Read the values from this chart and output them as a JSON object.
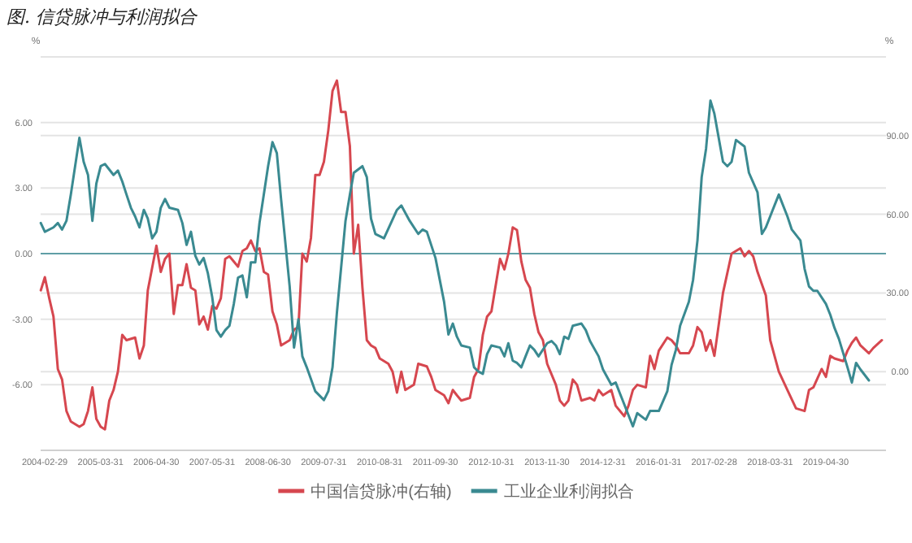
{
  "chart_data": {
    "type": "line",
    "title": "图. 信贷脉冲与利润拟合",
    "ylabel": "%",
    "y2label": "%",
    "xlim": [
      "2004-01-31",
      "2020-06-30"
    ],
    "xticks": [
      "2004-02-29",
      "2005-03-31",
      "2006-04-30",
      "2007-05-31",
      "2008-06-30",
      "2009-07-31",
      "2010-08-31",
      "2011-09-30",
      "2012-10-31",
      "2013-11-30",
      "2014-12-31",
      "2016-01-31",
      "2017-02-28",
      "2018-03-31",
      "2019-04-30"
    ],
    "ylim": [
      -9,
      9
    ],
    "yticks": [
      {
        "value": -9,
        "label": null
      },
      {
        "value": -6,
        "label": "-6.00"
      },
      {
        "value": -3,
        "label": "-3.00"
      },
      {
        "value": 0,
        "label": "0.00"
      },
      {
        "value": 3,
        "label": "3.00"
      },
      {
        "value": 6,
        "label": "6.00"
      },
      {
        "value": 9,
        "label": null
      }
    ],
    "y2lim": [
      -30,
      120
    ],
    "y2ticks": [
      {
        "value": -30,
        "label": null
      },
      {
        "value": 0,
        "label": "0.00"
      },
      {
        "value": 30,
        "label": "30.00"
      },
      {
        "value": 60,
        "label": "60.00"
      },
      {
        "value": 90,
        "label": "90.00"
      },
      {
        "value": 120,
        "label": null
      }
    ],
    "grid": "y",
    "legend": "bottom",
    "ref_lines": [
      {
        "axis": "y",
        "value": 0,
        "color": "#5f9ea6"
      }
    ],
    "series": [
      {
        "name": "中国信贷脉冲(右轴)",
        "color": "#d6474f",
        "axis": "y2",
        "x": [
          "2004-02",
          "2004-03",
          "2004-04",
          "2004-05",
          "2004-06",
          "2004-07",
          "2004-08",
          "2004-09",
          "2004-11",
          "2004-12",
          "2005-01",
          "2005-02",
          "2005-03",
          "2005-04",
          "2005-05",
          "2005-06",
          "2005-07",
          "2005-08",
          "2005-09",
          "2005-10",
          "2005-12",
          "2006-01",
          "2006-02",
          "2006-03",
          "2006-05",
          "2006-06",
          "2006-07",
          "2006-08",
          "2006-09",
          "2006-10",
          "2006-11",
          "2006-12",
          "2007-01",
          "2007-02",
          "2007-03",
          "2007-04",
          "2007-05",
          "2007-06",
          "2007-07",
          "2007-08",
          "2007-09",
          "2007-10",
          "2007-11",
          "2007-12",
          "2008-01",
          "2008-02",
          "2008-03",
          "2008-04",
          "2008-05",
          "2008-06",
          "2008-07",
          "2008-08",
          "2008-09",
          "2008-10",
          "2008-12",
          "2009-01",
          "2009-02",
          "2009-03",
          "2009-04",
          "2009-05",
          "2009-06",
          "2009-07",
          "2009-08",
          "2009-09",
          "2009-10",
          "2009-11",
          "2009-12",
          "2010-01",
          "2010-02",
          "2010-03",
          "2010-04",
          "2010-05",
          "2010-06",
          "2010-07",
          "2010-08",
          "2010-09",
          "2010-11",
          "2010-12",
          "2011-01",
          "2011-02",
          "2011-03",
          "2011-05",
          "2011-06",
          "2011-08",
          "2011-09",
          "2011-10",
          "2011-12",
          "2012-01",
          "2012-02",
          "2012-03",
          "2012-04",
          "2012-06",
          "2012-07",
          "2012-08",
          "2012-09",
          "2012-10",
          "2012-11",
          "2013-01",
          "2013-02",
          "2013-03",
          "2013-04",
          "2013-05",
          "2013-06",
          "2013-07",
          "2013-08",
          "2013-09",
          "2013-10",
          "2013-11",
          "2013-12",
          "2014-02",
          "2014-03",
          "2014-04",
          "2014-05",
          "2014-06",
          "2014-07",
          "2014-08",
          "2014-10",
          "2014-11",
          "2014-12",
          "2015-01",
          "2015-03",
          "2015-04",
          "2015-06",
          "2015-07",
          "2015-08",
          "2015-09",
          "2015-11",
          "2015-12",
          "2016-01",
          "2016-02",
          "2016-04",
          "2016-05",
          "2016-06",
          "2016-07",
          "2016-09",
          "2016-10",
          "2016-11",
          "2016-12",
          "2017-01",
          "2017-02",
          "2017-03",
          "2017-04",
          "2017-05",
          "2017-07",
          "2017-08",
          "2017-09",
          "2017-10",
          "2017-11",
          "2017-12",
          "2018-01",
          "2018-03",
          "2018-04",
          "2018-06",
          "2018-08",
          "2018-10",
          "2018-12",
          "2019-01",
          "2019-02",
          "2019-04",
          "2019-05",
          "2019-06",
          "2019-07",
          "2019-09",
          "2019-10",
          "2019-11",
          "2019-12",
          "2020-01",
          "2020-03",
          "2020-04",
          "2020-06"
        ],
        "values": [
          31,
          36,
          28,
          21,
          1,
          -3,
          -15,
          -19,
          -21,
          -20,
          -15,
          -6,
          -18,
          -21,
          -22,
          -11,
          -7,
          0,
          14,
          12,
          13,
          5,
          10,
          31,
          48,
          38,
          43,
          45,
          22,
          33,
          33,
          41,
          32,
          31,
          18,
          21,
          16,
          25,
          24,
          28,
          43,
          44,
          42,
          40,
          46,
          47,
          50,
          46,
          47,
          38,
          37,
          23,
          18,
          10,
          12,
          16,
          17,
          45,
          42,
          51,
          75,
          75,
          80,
          92,
          107,
          111,
          99,
          99,
          86,
          45,
          56,
          32,
          12,
          10,
          9,
          5,
          3,
          0,
          -8,
          0,
          -7,
          -5,
          3,
          2,
          -2,
          -7,
          -9,
          -12,
          -7,
          -9,
          -11,
          -10,
          -2,
          1,
          14,
          21,
          23,
          43,
          39,
          45,
          55,
          54,
          42,
          35,
          32,
          22,
          15,
          12,
          3,
          -5,
          -11,
          -13,
          -11,
          -3,
          -5,
          -11,
          -10,
          -11,
          -7,
          -9,
          -7,
          -13,
          -17,
          -13,
          -7,
          -5,
          -6,
          6,
          1,
          8,
          13,
          12,
          10,
          7,
          7,
          10,
          17,
          15,
          8,
          12,
          6,
          18,
          30,
          45,
          46,
          47,
          44,
          46,
          44,
          38,
          29,
          12,
          0,
          -7,
          -14,
          -15,
          -7,
          -6,
          1,
          -2,
          6,
          5,
          4,
          8,
          11,
          13,
          10,
          7,
          9,
          12
        ]
      },
      {
        "name": "工业企业利润拟合",
        "color": "#3a8a91",
        "axis": "y",
        "x": [
          "2004-02",
          "2004-03",
          "2004-05",
          "2004-06",
          "2004-07",
          "2004-08",
          "2004-09",
          "2004-11",
          "2004-12",
          "2005-01",
          "2005-02",
          "2005-03",
          "2005-04",
          "2005-05",
          "2005-07",
          "2005-08",
          "2005-09",
          "2005-10",
          "2005-11",
          "2005-12",
          "2006-01",
          "2006-02",
          "2006-03",
          "2006-04",
          "2006-05",
          "2006-06",
          "2006-07",
          "2006-08",
          "2006-10",
          "2006-11",
          "2006-12",
          "2007-01",
          "2007-02",
          "2007-03",
          "2007-04",
          "2007-05",
          "2007-06",
          "2007-07",
          "2007-08",
          "2007-09",
          "2007-10",
          "2007-11",
          "2007-12",
          "2008-01",
          "2008-02",
          "2008-03",
          "2008-04",
          "2008-05",
          "2008-07",
          "2008-08",
          "2008-09",
          "2008-10",
          "2008-12",
          "2009-01",
          "2009-02",
          "2009-03",
          "2009-04",
          "2009-06",
          "2009-08",
          "2009-09",
          "2009-10",
          "2009-11",
          "2010-01",
          "2010-02",
          "2010-03",
          "2010-05",
          "2010-06",
          "2010-07",
          "2010-08",
          "2010-10",
          "2011-01",
          "2011-02",
          "2011-04",
          "2011-06",
          "2011-07",
          "2011-08",
          "2011-10",
          "2011-12",
          "2012-01",
          "2012-02",
          "2012-03",
          "2012-04",
          "2012-06",
          "2012-07",
          "2012-08",
          "2012-09",
          "2012-10",
          "2012-11",
          "2013-01",
          "2013-02",
          "2013-03",
          "2013-04",
          "2013-05",
          "2013-06",
          "2013-07",
          "2013-08",
          "2013-09",
          "2013-10",
          "2013-12",
          "2014-01",
          "2014-02",
          "2014-03",
          "2014-04",
          "2014-05",
          "2014-06",
          "2014-08",
          "2014-09",
          "2014-10",
          "2014-12",
          "2015-01",
          "2015-03",
          "2015-04",
          "2015-06",
          "2015-08",
          "2015-09",
          "2015-11",
          "2015-12",
          "2016-02",
          "2016-04",
          "2016-05",
          "2016-06",
          "2016-07",
          "2016-09",
          "2016-10",
          "2016-11",
          "2016-12",
          "2017-01",
          "2017-02",
          "2017-03",
          "2017-05",
          "2017-06",
          "2017-07",
          "2017-08",
          "2017-10",
          "2017-11",
          "2018-01",
          "2018-02",
          "2018-03",
          "2018-05",
          "2018-06",
          "2018-08",
          "2018-09",
          "2018-11",
          "2018-12",
          "2019-01",
          "2019-02",
          "2019-03",
          "2019-05",
          "2019-06",
          "2019-07",
          "2019-08",
          "2019-10",
          "2019-11",
          "2019-12",
          "2020-01",
          "2020-03"
        ],
        "values": [
          1.4,
          1.0,
          1.2,
          1.4,
          1.1,
          1.5,
          2.7,
          5.3,
          4.2,
          3.6,
          1.5,
          3.2,
          4.0,
          4.1,
          3.6,
          3.8,
          3.3,
          2.7,
          2.1,
          1.7,
          1.2,
          2.0,
          1.6,
          0.7,
          1.0,
          2.1,
          2.5,
          2.1,
          2.0,
          1.4,
          0.4,
          1.0,
          -0.1,
          -0.5,
          -0.2,
          -0.9,
          -2.0,
          -3.5,
          -3.8,
          -3.5,
          -3.3,
          -2.3,
          -1.1,
          -1.0,
          -2.0,
          -0.4,
          -0.4,
          1.4,
          4.0,
          5.1,
          4.6,
          2.5,
          -1.5,
          -4.3,
          -3.0,
          -4.7,
          -5.2,
          -6.3,
          -6.7,
          -6.3,
          -5.2,
          -2.7,
          1.5,
          2.7,
          3.7,
          4.0,
          3.5,
          1.6,
          0.9,
          0.7,
          2.0,
          2.2,
          1.5,
          0.9,
          1.1,
          1.0,
          -0.2,
          -2.2,
          -3.7,
          -3.2,
          -3.8,
          -4.2,
          -4.3,
          -5.2,
          -5.4,
          -5.5,
          -4.6,
          -4.2,
          -4.3,
          -4.7,
          -4.1,
          -4.9,
          -5.0,
          -5.2,
          -4.7,
          -4.2,
          -4.4,
          -4.7,
          -4.1,
          -4.0,
          -4.2,
          -4.6,
          -3.8,
          -3.9,
          -3.3,
          -3.2,
          -3.5,
          -4.0,
          -4.7,
          -5.3,
          -6.0,
          -5.9,
          -6.9,
          -7.9,
          -7.3,
          -7.6,
          -7.2,
          -7.2,
          -6.3,
          -5.1,
          -4.4,
          -3.3,
          -2.2,
          -1.2,
          0.6,
          3.5,
          4.8,
          7.0,
          6.4,
          4.2,
          4.0,
          4.2,
          5.2,
          4.9,
          3.7,
          2.8,
          0.9,
          1.2,
          2.2,
          2.7,
          1.7,
          1.1,
          0.6,
          -0.7,
          -1.5,
          -1.7,
          -1.7,
          -2.3,
          -2.8,
          -3.4,
          -3.9,
          -5.2,
          -5.9,
          -5.0,
          -5.3,
          -5.8
        ]
      }
    ]
  }
}
